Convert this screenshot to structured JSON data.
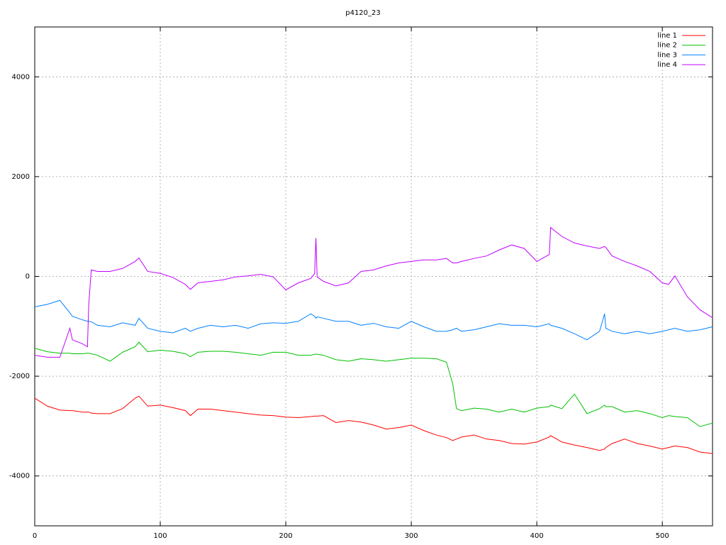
{
  "chart_data": {
    "type": "line",
    "title": "p4120_23",
    "x": [
      0,
      10,
      20,
      28,
      30,
      38,
      42,
      43,
      45,
      50,
      60,
      70,
      80,
      83,
      90,
      100,
      110,
      120,
      124,
      130,
      140,
      150,
      160,
      170,
      180,
      190,
      200,
      210,
      220,
      223,
      224,
      225,
      230,
      240,
      250,
      260,
      270,
      280,
      290,
      300,
      310,
      320,
      328,
      333,
      336,
      340,
      350,
      360,
      370,
      380,
      390,
      400,
      410,
      411,
      420,
      430,
      440,
      450,
      454,
      455,
      460,
      470,
      480,
      490,
      500,
      505,
      510,
      520,
      530,
      540
    ],
    "series": [
      {
        "name": "line 1",
        "color": "#ff0000",
        "values": [
          -2440,
          -2600,
          -2680,
          -2690,
          -2690,
          -2720,
          -2720,
          -2720,
          -2740,
          -2750,
          -2750,
          -2650,
          -2440,
          -2400,
          -2600,
          -2580,
          -2630,
          -2690,
          -2790,
          -2660,
          -2660,
          -2690,
          -2720,
          -2750,
          -2780,
          -2790,
          -2820,
          -2830,
          -2810,
          -2800,
          -2800,
          -2800,
          -2790,
          -2930,
          -2890,
          -2920,
          -2980,
          -3060,
          -3030,
          -2980,
          -3090,
          -3180,
          -3230,
          -3290,
          -3260,
          -3220,
          -3180,
          -3260,
          -3290,
          -3350,
          -3360,
          -3320,
          -3220,
          -3190,
          -3320,
          -3380,
          -3430,
          -3490,
          -3460,
          -3430,
          -3350,
          -3260,
          -3350,
          -3400,
          -3460,
          -3430,
          -3400,
          -3430,
          -3520,
          -3550
        ]
      },
      {
        "name": "line 2",
        "color": "#00c000",
        "values": [
          -1440,
          -1510,
          -1540,
          -1540,
          -1550,
          -1550,
          -1540,
          -1540,
          -1550,
          -1580,
          -1700,
          -1520,
          -1410,
          -1320,
          -1510,
          -1480,
          -1500,
          -1550,
          -1610,
          -1520,
          -1500,
          -1500,
          -1520,
          -1550,
          -1580,
          -1520,
          -1520,
          -1580,
          -1580,
          -1560,
          -1560,
          -1560,
          -1580,
          -1670,
          -1700,
          -1650,
          -1670,
          -1700,
          -1670,
          -1640,
          -1640,
          -1650,
          -1720,
          -2150,
          -2650,
          -2690,
          -2640,
          -2660,
          -2720,
          -2660,
          -2720,
          -2640,
          -2610,
          -2580,
          -2650,
          -2360,
          -2750,
          -2650,
          -2580,
          -2610,
          -2610,
          -2720,
          -2690,
          -2750,
          -2830,
          -2790,
          -2810,
          -2830,
          -3010,
          -2940
        ]
      },
      {
        "name": "line 3",
        "color": "#0080ff",
        "values": [
          -610,
          -560,
          -480,
          -730,
          -800,
          -870,
          -900,
          -900,
          -910,
          -980,
          -1010,
          -930,
          -980,
          -840,
          -1040,
          -1100,
          -1130,
          -1040,
          -1100,
          -1040,
          -980,
          -1010,
          -980,
          -1040,
          -950,
          -930,
          -940,
          -900,
          -750,
          -800,
          -840,
          -810,
          -840,
          -900,
          -900,
          -980,
          -940,
          -1010,
          -1040,
          -900,
          -1010,
          -1100,
          -1100,
          -1070,
          -1040,
          -1100,
          -1070,
          -1010,
          -950,
          -980,
          -980,
          -1010,
          -950,
          -980,
          -1040,
          -1150,
          -1270,
          -1100,
          -750,
          -1040,
          -1100,
          -1150,
          -1100,
          -1150,
          -1100,
          -1070,
          -1040,
          -1100,
          -1070,
          -1010
        ]
      },
      {
        "name": "line 4",
        "color": "#c000ff",
        "values": [
          -1580,
          -1620,
          -1620,
          -1040,
          -1270,
          -1350,
          -1410,
          -580,
          130,
          100,
          100,
          160,
          300,
          370,
          100,
          60,
          -20,
          -160,
          -260,
          -130,
          -100,
          -70,
          -10,
          10,
          40,
          -10,
          -270,
          -130,
          -40,
          60,
          770,
          -10,
          -100,
          -190,
          -130,
          100,
          130,
          210,
          270,
          300,
          330,
          330,
          360,
          270,
          270,
          300,
          360,
          410,
          530,
          630,
          560,
          300,
          440,
          980,
          800,
          670,
          610,
          560,
          600,
          580,
          410,
          300,
          210,
          100,
          -130,
          -160,
          10,
          -410,
          -670,
          -830
        ]
      }
    ],
    "xlim": [
      0,
      540
    ],
    "ylim": [
      -5000,
      5000
    ],
    "xticks": [
      0,
      100,
      200,
      300,
      400,
      500
    ],
    "yticks": [
      -4000,
      -2000,
      0,
      2000,
      4000
    ],
    "grid": true,
    "legend": "top-right"
  }
}
